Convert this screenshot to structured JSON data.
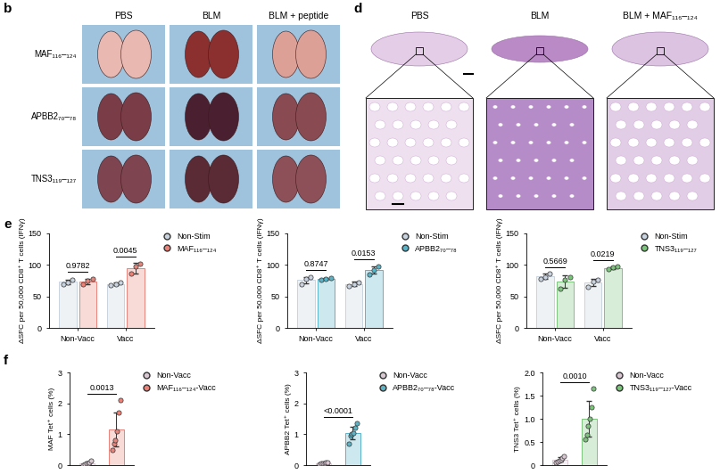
{
  "panel_labels": [
    "b",
    "d",
    "e",
    "f"
  ],
  "panel_b": {
    "columns": [
      "PBS",
      "BLM",
      "BLM + peptide"
    ],
    "rows": [
      "MAF₁₁₆–₁₂₄",
      "APBB2₇₀–₇₈",
      "TNS3₁₁₉–₁₂₇"
    ]
  },
  "panel_d": {
    "columns": [
      "PBS",
      "BLM",
      "BLM + MAF₁₁₆–₁₂₄"
    ]
  },
  "chart_data": [
    {
      "type": "bar",
      "ylabel": "ΔSFC per 50,000 CD8⁺ T cells (IFNγ)",
      "categories": [
        "Non-Vacc",
        "Vacc"
      ],
      "series": [
        {
          "name": "Non-Stim",
          "color": "#c9d3df",
          "values": [
            73,
            70
          ],
          "errors": [
            4,
            2
          ],
          "points": [
            [
              70,
              72,
              77
            ],
            [
              68,
              70,
              72
            ]
          ]
        },
        {
          "name": "MAF₁₁₆–₁₂₄",
          "color": "#e8837a",
          "values": [
            74,
            95
          ],
          "errors": [
            4,
            8
          ],
          "points": [
            [
              70,
              75,
              78
            ],
            [
              86,
              98,
              102
            ]
          ]
        }
      ],
      "annotations": [
        "0.9782",
        "0.0045"
      ],
      "ylim": [
        0,
        150
      ],
      "yticks": [
        0,
        50,
        100,
        150
      ],
      "legend": "upper left"
    },
    {
      "type": "bar",
      "ylabel": "ΔSFC per 50,000 CD8⁺ T cells (IFNγ)",
      "categories": [
        "Non-Vacc",
        "Vacc"
      ],
      "series": [
        {
          "name": "Non-Stim",
          "color": "#c9d3df",
          "values": [
            76,
            70
          ],
          "errors": [
            5,
            3
          ],
          "points": [
            [
              70,
              78,
              80
            ],
            [
              66,
              70,
              72
            ]
          ]
        },
        {
          "name": "APBB2₇₀–₇₈",
          "color": "#5ab4c8",
          "values": [
            78,
            92
          ],
          "errors": [
            1,
            6
          ],
          "points": [
            [
              77,
              78,
              79
            ],
            [
              85,
              92,
              97
            ]
          ]
        }
      ],
      "annotations": [
        "0.8747",
        "0.0153"
      ],
      "ylim": [
        0,
        150
      ],
      "yticks": [
        0,
        50,
        100,
        150
      ],
      "legend": "upper left"
    },
    {
      "type": "bar",
      "ylabel": "ΔSFC per 50,000 CD8⁺ T cells (IFNγ)",
      "categories": [
        "Non-Vacc",
        "Vacc"
      ],
      "series": [
        {
          "name": "Non-Stim",
          "color": "#c9d3df",
          "values": [
            82,
            72
          ],
          "errors": [
            4,
            6
          ],
          "points": [
            [
              78,
              80,
              86
            ],
            [
              65,
              74,
              76
            ]
          ]
        },
        {
          "name": "TNS3₁₁₉–₁₂₇",
          "color": "#7cc47c",
          "values": [
            73,
            95
          ],
          "errors": [
            10,
            2
          ],
          "points": [
            [
              62,
              77,
              80
            ],
            [
              93,
              96,
              97
            ]
          ]
        }
      ],
      "annotations": [
        "0.5669",
        "0.0219"
      ],
      "ylim": [
        0,
        150
      ],
      "yticks": [
        0,
        50,
        100,
        150
      ],
      "legend": "upper left"
    },
    {
      "type": "bar",
      "ylabel": "MAF Tet⁺ cells (%)",
      "categories": [
        null,
        null
      ],
      "series": [
        {
          "name": "Non-Vacc",
          "color": "#d9c8d2",
          "values": [
            0.06,
            null
          ],
          "errors": [
            0.06,
            null
          ],
          "points": [
            [
              0.0,
              0.02,
              0.05,
              0.05,
              0.1,
              0.15
            ],
            null
          ]
        },
        {
          "name": "MAF₁₁₆–₁₂₄-Vacc",
          "color": "#e8837a",
          "values": [
            null,
            1.15
          ],
          "errors": [
            null,
            0.55
          ],
          "points": [
            null,
            [
              0.5,
              0.7,
              0.8,
              1.1,
              1.7,
              2.1
            ]
          ]
        }
      ],
      "annotations": [
        "0.0013"
      ],
      "ylim": [
        0,
        3
      ],
      "yticks": [
        0,
        1,
        2,
        3
      ],
      "legend": "upper left",
      "tick_labels": "y"
    },
    {
      "type": "bar",
      "ylabel": "APBB2 Tet⁺ cells (%)",
      "categories": [
        null,
        null
      ],
      "series": [
        {
          "name": "Non-Vacc",
          "color": "#d9c8d2",
          "values": [
            0.06,
            null
          ],
          "errors": [
            0.02,
            null
          ],
          "points": [
            [
              0.04,
              0.05,
              0.06,
              0.07,
              0.08,
              0.1
            ],
            null
          ]
        },
        {
          "name": "APBB2₇₀–₇₈-Vacc",
          "color": "#5ab4c8",
          "values": [
            null,
            1.05
          ],
          "errors": [
            null,
            0.2
          ],
          "points": [
            null,
            [
              0.7,
              0.95,
              1.0,
              1.05,
              1.2,
              1.35
            ]
          ]
        }
      ],
      "annotations": [
        "<0.0001"
      ],
      "ylim": [
        0,
        3
      ],
      "yticks": [
        0,
        1,
        2,
        3
      ],
      "legend": "upper left",
      "tick_labels": "y"
    },
    {
      "type": "bar",
      "ylabel": "TNS3 Tet⁺ cells (%)",
      "categories": [
        null,
        null
      ],
      "series": [
        {
          "name": "Non-Vacc",
          "color": "#d9c8d2",
          "values": [
            0.12,
            null
          ],
          "errors": [
            0.05,
            null
          ],
          "points": [
            [
              0.05,
              0.08,
              0.1,
              0.12,
              0.15,
              0.2
            ],
            null
          ]
        },
        {
          "name": "TNS3₁₁₉–₁₂₇-Vacc",
          "color": "#7cc47c",
          "values": [
            null,
            1.0
          ],
          "errors": [
            null,
            0.38
          ],
          "points": [
            null,
            [
              0.55,
              0.65,
              0.85,
              1.0,
              1.25,
              1.65
            ]
          ]
        }
      ],
      "annotations": [
        "0.0010"
      ],
      "ylim": [
        0,
        2
      ],
      "yticks": [
        0,
        0.5,
        {
          "value": 1,
          "label": "1.0"
        },
        1.5,
        {
          "value": 2,
          "label": "2.0"
        }
      ],
      "legend": "upper left",
      "tick_labels": "y"
    }
  ]
}
